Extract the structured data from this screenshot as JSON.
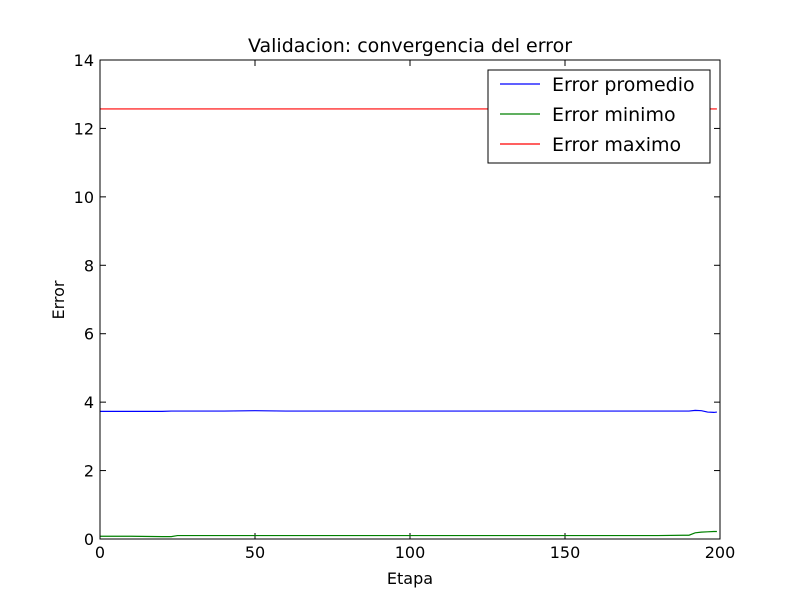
{
  "chart_data": {
    "type": "line",
    "title": "Validacion: convergencia del error",
    "xlabel": "Etapa",
    "ylabel": "Error",
    "xlim": [
      0,
      200
    ],
    "ylim": [
      0,
      14
    ],
    "x_ticks": [
      0,
      50,
      100,
      150,
      200
    ],
    "y_ticks": [
      0,
      2,
      4,
      6,
      8,
      10,
      12,
      14
    ],
    "grid": false,
    "legend_position": "top-right",
    "series": [
      {
        "name": "Error promedio",
        "color": "#0000ff",
        "x": [
          0,
          10,
          20,
          23,
          30,
          40,
          50,
          60,
          70,
          80,
          90,
          100,
          110,
          120,
          130,
          140,
          150,
          160,
          170,
          180,
          186,
          190,
          192,
          194,
          196,
          198,
          199
        ],
        "y": [
          3.73,
          3.73,
          3.73,
          3.74,
          3.74,
          3.74,
          3.75,
          3.74,
          3.74,
          3.74,
          3.74,
          3.74,
          3.74,
          3.74,
          3.74,
          3.74,
          3.74,
          3.74,
          3.74,
          3.74,
          3.74,
          3.74,
          3.76,
          3.75,
          3.71,
          3.7,
          3.71
        ]
      },
      {
        "name": "Error minimo",
        "color": "#008000",
        "x": [
          0,
          10,
          20,
          23,
          25,
          30,
          40,
          50,
          60,
          70,
          80,
          90,
          100,
          110,
          120,
          130,
          140,
          150,
          160,
          170,
          180,
          188,
          190,
          192,
          194,
          196,
          198,
          199
        ],
        "y": [
          0.08,
          0.08,
          0.07,
          0.07,
          0.1,
          0.1,
          0.1,
          0.1,
          0.1,
          0.1,
          0.1,
          0.1,
          0.1,
          0.1,
          0.1,
          0.1,
          0.1,
          0.1,
          0.1,
          0.1,
          0.1,
          0.11,
          0.11,
          0.18,
          0.2,
          0.21,
          0.22,
          0.22
        ]
      },
      {
        "name": "Error maximo",
        "color": "#ff0000",
        "x": [
          0,
          199
        ],
        "y": [
          12.57,
          12.57
        ]
      }
    ]
  }
}
